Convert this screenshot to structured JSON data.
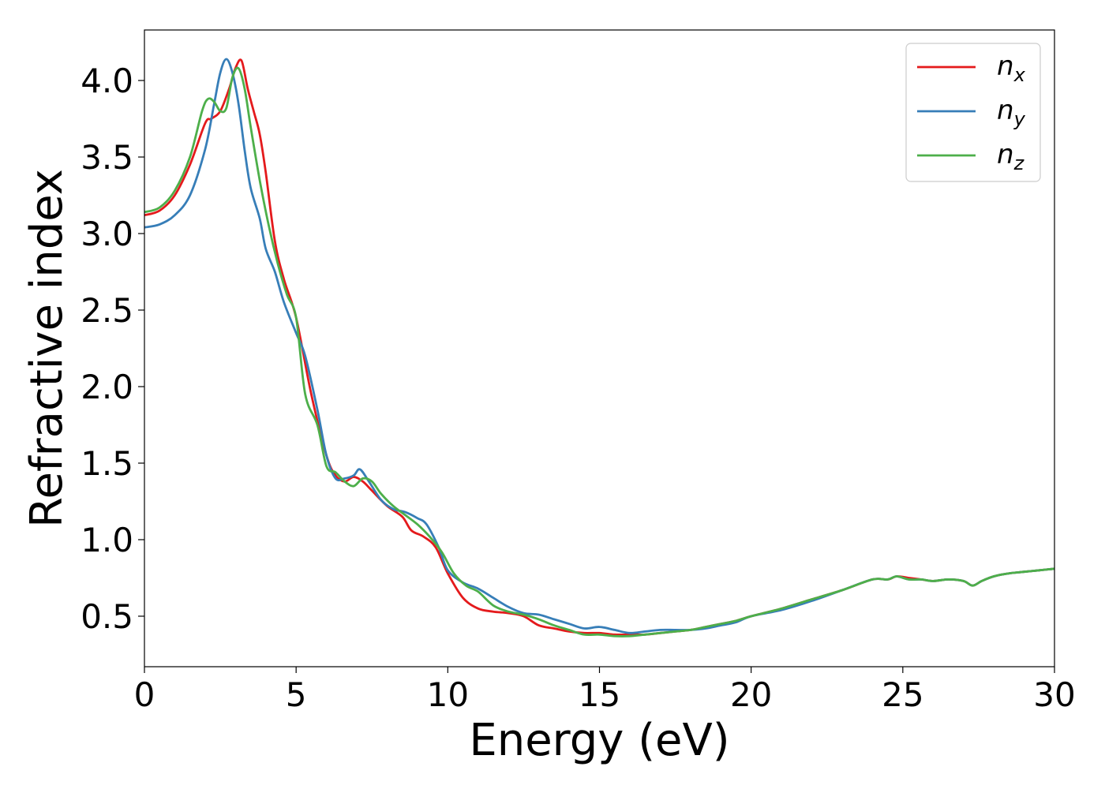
{
  "chart_data": {
    "type": "line",
    "title": "",
    "xlabel": "Energy (eV)",
    "ylabel": "Refractive index",
    "xlim": [
      0,
      30
    ],
    "ylim": [
      0.17,
      4.33
    ],
    "xticks": [
      0,
      5,
      10,
      15,
      20,
      25,
      30
    ],
    "yticks": [
      0.5,
      1.0,
      1.5,
      2.0,
      2.5,
      3.0,
      3.5,
      4.0
    ],
    "xtick_labels": [
      "0",
      "5",
      "10",
      "15",
      "20",
      "25",
      "30"
    ],
    "ytick_labels": [
      "0.5",
      "1.0",
      "1.5",
      "2.0",
      "2.5",
      "3.0",
      "3.5",
      "4.0"
    ],
    "grid": false,
    "legend_position": "top-right",
    "series": [
      {
        "name": "n",
        "subscript": "x",
        "color": "#e41a1c",
        "x": [
          0,
          0.5,
          1.0,
          1.5,
          2.0,
          2.2,
          2.5,
          2.8,
          3.0,
          3.2,
          3.4,
          3.6,
          3.8,
          4.0,
          4.3,
          4.6,
          5.0,
          5.5,
          6.0,
          6.3,
          6.6,
          6.9,
          7.2,
          7.5,
          8.0,
          8.5,
          8.8,
          9.2,
          9.6,
          10.0,
          10.5,
          11.0,
          11.5,
          12.0,
          12.5,
          13.0,
          13.5,
          14.0,
          14.5,
          15.0,
          15.5,
          16.0,
          16.5,
          17.0,
          17.5,
          18.0,
          18.5,
          19.0,
          19.5,
          20.0,
          21.0,
          22.0,
          23.0,
          24.0,
          24.5,
          24.8,
          25.2,
          25.6,
          26.0,
          26.5,
          27.0,
          27.3,
          27.6,
          28.0,
          28.5,
          29.0,
          29.5,
          30.0
        ],
        "y": [
          3.12,
          3.15,
          3.25,
          3.45,
          3.72,
          3.75,
          3.8,
          3.95,
          4.08,
          4.13,
          3.95,
          3.8,
          3.65,
          3.4,
          2.95,
          2.7,
          2.45,
          1.95,
          1.55,
          1.42,
          1.38,
          1.41,
          1.38,
          1.32,
          1.22,
          1.15,
          1.06,
          1.02,
          0.95,
          0.78,
          0.62,
          0.55,
          0.53,
          0.52,
          0.5,
          0.44,
          0.42,
          0.4,
          0.39,
          0.39,
          0.38,
          0.38,
          0.38,
          0.39,
          0.4,
          0.41,
          0.43,
          0.45,
          0.47,
          0.5,
          0.55,
          0.61,
          0.67,
          0.74,
          0.74,
          0.76,
          0.75,
          0.74,
          0.73,
          0.74,
          0.73,
          0.7,
          0.73,
          0.76,
          0.78,
          0.79,
          0.8,
          0.81
        ]
      },
      {
        "name": "n",
        "subscript": "y",
        "color": "#377eb8",
        "x": [
          0,
          0.5,
          1.0,
          1.5,
          2.0,
          2.3,
          2.5,
          2.7,
          2.9,
          3.1,
          3.3,
          3.5,
          3.8,
          4.0,
          4.3,
          4.6,
          5.0,
          5.3,
          5.7,
          6.0,
          6.3,
          6.6,
          6.9,
          7.1,
          7.4,
          7.8,
          8.2,
          8.6,
          9.0,
          9.3,
          9.7,
          10.0,
          10.5,
          11.0,
          11.5,
          12.0,
          12.5,
          13.0,
          13.5,
          14.0,
          14.5,
          15.0,
          15.5,
          16.0,
          16.5,
          17.0,
          17.5,
          18.0,
          18.5,
          19.0,
          19.5,
          20.0,
          21.0,
          22.0,
          23.0,
          24.0,
          24.5,
          24.8,
          25.2,
          25.6,
          26.0,
          26.5,
          27.0,
          27.3,
          27.6,
          28.0,
          28.5,
          29.0,
          29.5,
          30.0
        ],
        "y": [
          3.04,
          3.06,
          3.12,
          3.25,
          3.55,
          3.85,
          4.05,
          4.14,
          4.05,
          3.85,
          3.55,
          3.3,
          3.1,
          2.9,
          2.75,
          2.55,
          2.35,
          2.2,
          1.85,
          1.55,
          1.4,
          1.4,
          1.42,
          1.46,
          1.38,
          1.26,
          1.2,
          1.18,
          1.14,
          1.1,
          0.95,
          0.8,
          0.72,
          0.68,
          0.62,
          0.56,
          0.52,
          0.51,
          0.48,
          0.45,
          0.42,
          0.43,
          0.41,
          0.39,
          0.4,
          0.41,
          0.41,
          0.41,
          0.42,
          0.44,
          0.46,
          0.5,
          0.54,
          0.6,
          0.67,
          0.74,
          0.74,
          0.76,
          0.74,
          0.74,
          0.73,
          0.74,
          0.73,
          0.7,
          0.73,
          0.76,
          0.78,
          0.79,
          0.8,
          0.81
        ]
      },
      {
        "name": "n",
        "subscript": "z",
        "color": "#4daf4a",
        "x": [
          0,
          0.5,
          1.0,
          1.5,
          1.9,
          2.1,
          2.3,
          2.5,
          2.7,
          2.9,
          3.1,
          3.3,
          3.5,
          3.8,
          4.1,
          4.4,
          4.7,
          5.0,
          5.3,
          5.7,
          6.0,
          6.3,
          6.6,
          6.9,
          7.2,
          7.5,
          7.8,
          8.2,
          8.6,
          9.0,
          9.4,
          9.8,
          10.2,
          10.6,
          11.0,
          11.5,
          12.0,
          12.5,
          13.0,
          13.5,
          14.0,
          14.5,
          15.0,
          15.5,
          16.0,
          16.5,
          17.0,
          17.5,
          18.0,
          18.5,
          19.0,
          19.5,
          20.0,
          21.0,
          22.0,
          23.0,
          24.0,
          24.5,
          24.8,
          25.2,
          25.6,
          26.0,
          26.5,
          27.0,
          27.3,
          27.6,
          28.0,
          28.5,
          29.0,
          29.5,
          30.0
        ],
        "y": [
          3.14,
          3.17,
          3.28,
          3.5,
          3.8,
          3.88,
          3.86,
          3.8,
          3.82,
          4.02,
          4.08,
          3.95,
          3.7,
          3.35,
          3.05,
          2.8,
          2.6,
          2.45,
          1.95,
          1.75,
          1.48,
          1.44,
          1.38,
          1.35,
          1.4,
          1.38,
          1.3,
          1.22,
          1.16,
          1.1,
          1.02,
          0.92,
          0.78,
          0.7,
          0.66,
          0.57,
          0.53,
          0.51,
          0.48,
          0.44,
          0.41,
          0.38,
          0.38,
          0.37,
          0.37,
          0.38,
          0.39,
          0.4,
          0.41,
          0.43,
          0.45,
          0.47,
          0.5,
          0.55,
          0.61,
          0.67,
          0.74,
          0.74,
          0.76,
          0.74,
          0.74,
          0.73,
          0.74,
          0.73,
          0.7,
          0.73,
          0.76,
          0.78,
          0.79,
          0.8,
          0.81
        ]
      }
    ]
  }
}
